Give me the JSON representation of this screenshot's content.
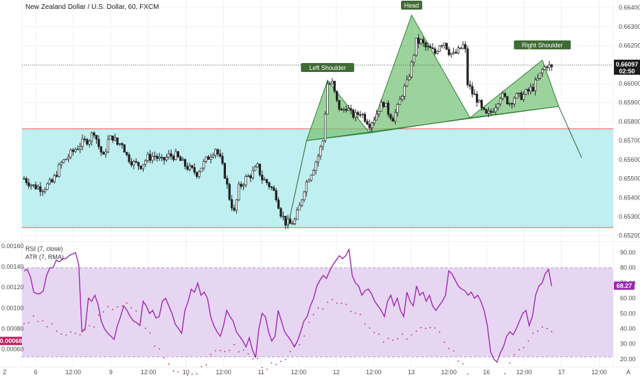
{
  "chart_data": [
    {
      "type": "candlestick",
      "title": "New Zealand Dollar / U.S. Dollar, 60, FXCM",
      "y_ticks": [
        "0.66400",
        "0.66300",
        "0.66200",
        "0.66100",
        "0.66000",
        "0.65900",
        "0.65800",
        "0.65700",
        "0.65600",
        "0.65500",
        "0.65400",
        "0.65300",
        "0.65200"
      ],
      "ylim": [
        0.6517,
        0.6644
      ],
      "x_ticks": [
        "6",
        "12:00",
        "9",
        "12:00",
        "10",
        "12:00",
        "11",
        "12:00",
        "12",
        "12:00",
        "13",
        "12:00",
        "16",
        "12:00",
        "17",
        "12:00"
      ],
      "current_price": "0.66097",
      "countdown": "02:50",
      "zone": {
        "top": 0.65762,
        "bottom": 0.65242
      },
      "pattern_labels": {
        "left_shoulder": "Left Shoulder",
        "head": "Head",
        "right_shoulder": "Right Shoulder"
      },
      "close_path": [
        [
          0,
          0.655
        ],
        [
          4,
          0.6546
        ],
        [
          8,
          0.6545
        ],
        [
          12,
          0.6548
        ],
        [
          16,
          0.6558
        ],
        [
          20,
          0.6563
        ],
        [
          24,
          0.6568
        ],
        [
          28,
          0.6571
        ],
        [
          30,
          0.6575
        ],
        [
          32,
          0.6567
        ],
        [
          34,
          0.6561
        ],
        [
          36,
          0.657
        ],
        [
          38,
          0.6572
        ],
        [
          40,
          0.6568
        ],
        [
          42,
          0.6569
        ],
        [
          44,
          0.6562
        ],
        [
          47,
          0.6558
        ],
        [
          50,
          0.6557
        ],
        [
          53,
          0.6561
        ],
        [
          56,
          0.6562
        ],
        [
          59,
          0.6559
        ],
        [
          62,
          0.6562
        ],
        [
          65,
          0.6562
        ],
        [
          68,
          0.6558
        ],
        [
          71,
          0.6555
        ],
        [
          74,
          0.6553
        ],
        [
          77,
          0.6558
        ],
        [
          80,
          0.6563
        ],
        [
          82,
          0.6566
        ],
        [
          84,
          0.656
        ],
        [
          86,
          0.6552
        ],
        [
          88,
          0.654
        ],
        [
          90,
          0.6532
        ],
        [
          92,
          0.6545
        ],
        [
          95,
          0.655
        ],
        [
          98,
          0.6553
        ],
        [
          100,
          0.6556
        ],
        [
          102,
          0.655
        ],
        [
          104,
          0.6548
        ],
        [
          106,
          0.6545
        ],
        [
          108,
          0.6541
        ],
        [
          110,
          0.6532
        ],
        [
          112,
          0.6527
        ],
        [
          114,
          0.6526
        ],
        [
          116,
          0.6528
        ],
        [
          118,
          0.6535
        ],
        [
          120,
          0.6545
        ],
        [
          122,
          0.6551
        ],
        [
          124,
          0.6556
        ],
        [
          126,
          0.6562
        ],
        [
          128,
          0.657
        ],
        [
          130,
          0.66
        ],
        [
          132,
          0.66
        ],
        [
          134,
          0.659
        ],
        [
          136,
          0.6585
        ],
        [
          138,
          0.6588
        ],
        [
          140,
          0.6584
        ],
        [
          142,
          0.6583
        ],
        [
          144,
          0.6585
        ],
        [
          146,
          0.6582
        ],
        [
          148,
          0.6579
        ],
        [
          150,
          0.6582
        ],
        [
          152,
          0.6587
        ],
        [
          154,
          0.659
        ],
        [
          156,
          0.6585
        ],
        [
          158,
          0.6582
        ],
        [
          160,
          0.6587
        ],
        [
          162,
          0.6595
        ],
        [
          164,
          0.66
        ],
        [
          166,
          0.661
        ],
        [
          168,
          0.6622
        ],
        [
          170,
          0.6622
        ],
        [
          172,
          0.6619
        ],
        [
          174,
          0.6618
        ],
        [
          176,
          0.6616
        ],
        [
          178,
          0.6621
        ],
        [
          180,
          0.6622
        ],
        [
          182,
          0.6617
        ],
        [
          184,
          0.6615
        ],
        [
          186,
          0.6617
        ],
        [
          188,
          0.662
        ],
        [
          189,
          0.6617
        ],
        [
          190,
          0.66
        ],
        [
          192,
          0.6595
        ],
        [
          194,
          0.6592
        ],
        [
          196,
          0.6586
        ],
        [
          198,
          0.6583
        ],
        [
          200,
          0.6585
        ],
        [
          202,
          0.6589
        ],
        [
          204,
          0.6594
        ],
        [
          206,
          0.6592
        ],
        [
          208,
          0.659
        ],
        [
          210,
          0.6593
        ],
        [
          212,
          0.6593
        ],
        [
          214,
          0.6594
        ],
        [
          216,
          0.6596
        ],
        [
          218,
          0.6598
        ],
        [
          220,
          0.6602
        ],
        [
          222,
          0.6607
        ],
        [
          224,
          0.661
        ],
        [
          226,
          0.6608
        ]
      ]
    },
    {
      "type": "line",
      "title": "RSI (7, close)",
      "ylim": [
        15,
        97
      ],
      "y_ticks": [
        "90.00",
        "80.00",
        "70.00",
        "60.00",
        "50.00",
        "40.00",
        "30.00",
        "20.00"
      ],
      "last_value": "68.27",
      "band": {
        "top": 80,
        "bottom": 21.5
      },
      "values": [
        78,
        79,
        74,
        64,
        63,
        63,
        65,
        75,
        80,
        80,
        85,
        84,
        86,
        86,
        88,
        89,
        90,
        82,
        38,
        40,
        60,
        58,
        62,
        56,
        45,
        40,
        37,
        35,
        33,
        42,
        48,
        55,
        52,
        48,
        45,
        44,
        42,
        58,
        55,
        50,
        52,
        47,
        48,
        58,
        60,
        55,
        50,
        43,
        40,
        37,
        52,
        58,
        66,
        64,
        70,
        62,
        64,
        60,
        48,
        42,
        38,
        35,
        42,
        52,
        48,
        45,
        38,
        35,
        32,
        28,
        34,
        26,
        21,
        40,
        50,
        48,
        38,
        32,
        35,
        52,
        45,
        38,
        35,
        32,
        28,
        32,
        38,
        45,
        48,
        55,
        60,
        68,
        72,
        75,
        73,
        78,
        82,
        85,
        88,
        86,
        88,
        92,
        75,
        70,
        68,
        62,
        65,
        66,
        63,
        58,
        55,
        52,
        48,
        58,
        62,
        55,
        60,
        52,
        48,
        64,
        58,
        55,
        68,
        62,
        64,
        58,
        62,
        55,
        52,
        55,
        58,
        62,
        78,
        76,
        72,
        68,
        66,
        65,
        62,
        64,
        60,
        62,
        58,
        52,
        42,
        25,
        20,
        18,
        24,
        28,
        35,
        38,
        36,
        40,
        45,
        50,
        52,
        42,
        48,
        62,
        68,
        70,
        76,
        79,
        68
      ]
    },
    {
      "type": "scatter",
      "title": "ATR (7, RMA)",
      "ylim": [
        0.00043,
        0.00164
      ],
      "y_ticks": [
        "0.00160",
        "0.00140",
        "0.00120",
        "0.00100",
        "0.00080",
        "0.00068",
        "0.00060"
      ],
      "last_value": "0.00068"
    }
  ],
  "axis_labels": {
    "left_corner": "Z",
    "right_corner": "A"
  },
  "colors": {
    "zone_fill": "#bfeff0",
    "zone_line": "#ef5350",
    "pattern_fill": "#7bc47b",
    "pattern_line": "#2e7d32",
    "rsi_line": "#9c27b0",
    "rsi_band": "#e6d6f2",
    "atr_badge": "#c2185b",
    "candle": "#222222"
  }
}
